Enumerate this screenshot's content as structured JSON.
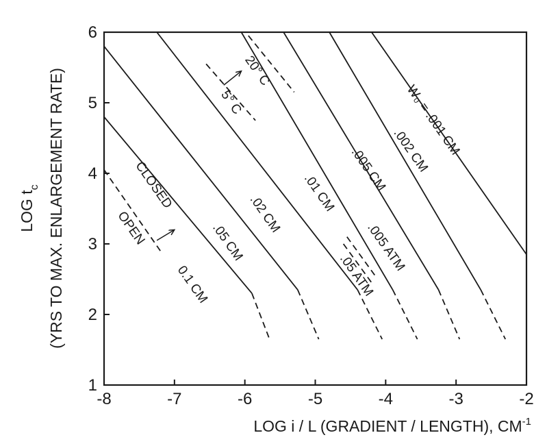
{
  "chart_data": {
    "type": "line",
    "xlabel": "LOG i / L (GRADIENT / LENGTH), CM",
    "xlabel_sup": "-1",
    "ylabel_line1": "LOG t",
    "ylabel_sub": "c",
    "ylabel_line2": "(YRS TO MAX. ENLARGEMENT RATE)",
    "xlim": [
      -8,
      -2
    ],
    "ylim": [
      1,
      6
    ],
    "xticks": [
      -8,
      -7,
      -6,
      -5,
      -4,
      -3,
      -2
    ],
    "xtick_labels": [
      "-8",
      "-7",
      "-6",
      "-5",
      "-4",
      "-3",
      "-2"
    ],
    "yticks": [
      1,
      2,
      3,
      4,
      5,
      6
    ],
    "ytick_labels": [
      "1",
      "2",
      "3",
      "4",
      "5",
      "6"
    ],
    "grid": false,
    "series": [
      {
        "name": "W₀ = .001 CM",
        "style": "solid",
        "x": [
          -4.2,
          -2.0
        ],
        "y": [
          6.0,
          2.85
        ]
      },
      {
        "name": ".002 CM",
        "style": "solid",
        "x": [
          -4.8,
          -2.65
        ],
        "y": [
          6.0,
          2.35
        ]
      },
      {
        "name": ".002 CM",
        "style": "dashed",
        "x": [
          -2.65,
          -2.3
        ],
        "y": [
          2.35,
          1.65
        ]
      },
      {
        "name": ".005 CM",
        "style": "solid",
        "x": [
          -5.45,
          -3.25
        ],
        "y": [
          6.0,
          2.35
        ]
      },
      {
        "name": ".005 CM",
        "style": "dashed",
        "x": [
          -3.25,
          -2.95
        ],
        "y": [
          2.35,
          1.65
        ]
      },
      {
        "name": ".01 CM",
        "style": "solid",
        "x": [
          -6.05,
          -3.9
        ],
        "y": [
          6.0,
          2.35
        ]
      },
      {
        "name": ".01 CM",
        "style": "dashed",
        "x": [
          -3.9,
          -3.55
        ],
        "y": [
          2.35,
          1.65
        ]
      },
      {
        "name": ".005 ATM",
        "style": "dashed",
        "x": [
          -4.55,
          -4.15
        ],
        "y": [
          3.1,
          2.55
        ]
      },
      {
        "name": ".05 ATM",
        "style": "dashed",
        "x": [
          -4.6,
          -4.2
        ],
        "y": [
          3.0,
          2.45
        ]
      },
      {
        "name": ".02 CM",
        "style": "solid",
        "x": [
          -7.25,
          -4.4
        ],
        "y": [
          6.0,
          2.35
        ]
      },
      {
        "name": ".02 CM",
        "style": "dashed",
        "x": [
          -4.4,
          -4.05
        ],
        "y": [
          2.35,
          1.65
        ]
      },
      {
        "name": ".05 CM",
        "style": "solid",
        "x": [
          -8.0,
          -5.25
        ],
        "y": [
          5.8,
          2.35
        ]
      },
      {
        "name": ".05 CM",
        "style": "dashed",
        "x": [
          -5.25,
          -4.95
        ],
        "y": [
          2.35,
          1.65
        ]
      },
      {
        "name": "0.1 CM",
        "style": "solid",
        "x": [
          -8.0,
          -5.9
        ],
        "y": [
          4.8,
          2.3
        ]
      },
      {
        "name": "0.1 CM",
        "style": "dashed",
        "x": [
          -5.9,
          -5.65
        ],
        "y": [
          2.3,
          1.65
        ]
      },
      {
        "name": "OPEN",
        "style": "dashed",
        "x": [
          -8.0,
          -7.2
        ],
        "y": [
          4.05,
          2.9
        ]
      },
      {
        "name": "20° C",
        "style": "dashed",
        "x": [
          -5.95,
          -5.3
        ],
        "y": [
          5.95,
          5.15
        ]
      },
      {
        "name": "5° C",
        "style": "dashed",
        "x": [
          -6.55,
          -5.85
        ],
        "y": [
          5.55,
          4.75
        ]
      }
    ],
    "arrows": [
      {
        "from": [
          -6.3,
          5.25
        ],
        "to": [
          -6.05,
          5.45
        ]
      },
      {
        "from": [
          -7.25,
          3.05
        ],
        "to": [
          -7.0,
          3.2
        ]
      }
    ],
    "labels": [
      {
        "text": "W₀ = .001 CM",
        "x": -3.33,
        "y": 4.75,
        "angle": 55
      },
      {
        "text": ".002 CM",
        "x": -3.65,
        "y": 4.32,
        "angle": 55
      },
      {
        "text": ".005 CM",
        "x": -4.25,
        "y": 4.05,
        "angle": 55
      },
      {
        "text": ".01 CM",
        "x": -4.95,
        "y": 3.72,
        "angle": 55
      },
      {
        "text": ".005 ATM",
        "x": -4.0,
        "y": 2.95,
        "angle": 55
      },
      {
        "text": ".05 ATM",
        "x": -4.42,
        "y": 2.55,
        "angle": 55
      },
      {
        "text": ".02 CM",
        "x": -5.72,
        "y": 3.42,
        "angle": 55
      },
      {
        "text": ".05 CM",
        "x": -6.25,
        "y": 3.02,
        "angle": 55
      },
      {
        "text": "CLOSED",
        "x": -7.3,
        "y": 3.83,
        "angle": 55
      },
      {
        "text": "OPEN",
        "x": -7.62,
        "y": 3.22,
        "angle": 55
      },
      {
        "text": "0.1 CM",
        "x": -6.75,
        "y": 2.42,
        "angle": 55
      },
      {
        "text": "20° C",
        "x": -5.83,
        "y": 5.45,
        "angle": 55
      },
      {
        "text": "5° C",
        "x": -6.2,
        "y": 5.0,
        "angle": 55
      }
    ]
  }
}
